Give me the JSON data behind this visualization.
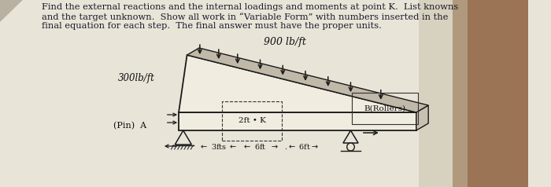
{
  "bg_color_left": "#d8d0c0",
  "bg_color_right": "#a08060",
  "paper_color": "#e8e4d8",
  "title_lines": [
    "Find the external reactions and the internal loadings and moments at point K.  List knowns",
    "and the target unknown.  Show all work in “Variable Form” with numbers inserted in the",
    "final equation for each step.  The final answer must have the proper units."
  ],
  "load_label_top": "900 lb/ft",
  "load_label_left": "300lb/ft",
  "label_K": "2ft • K",
  "label_B": "B(Rollers)",
  "label_A": "(Pin)  A",
  "dim_bottom": "← 3fts←  ← 6ft  →  .← 6ft→"
}
